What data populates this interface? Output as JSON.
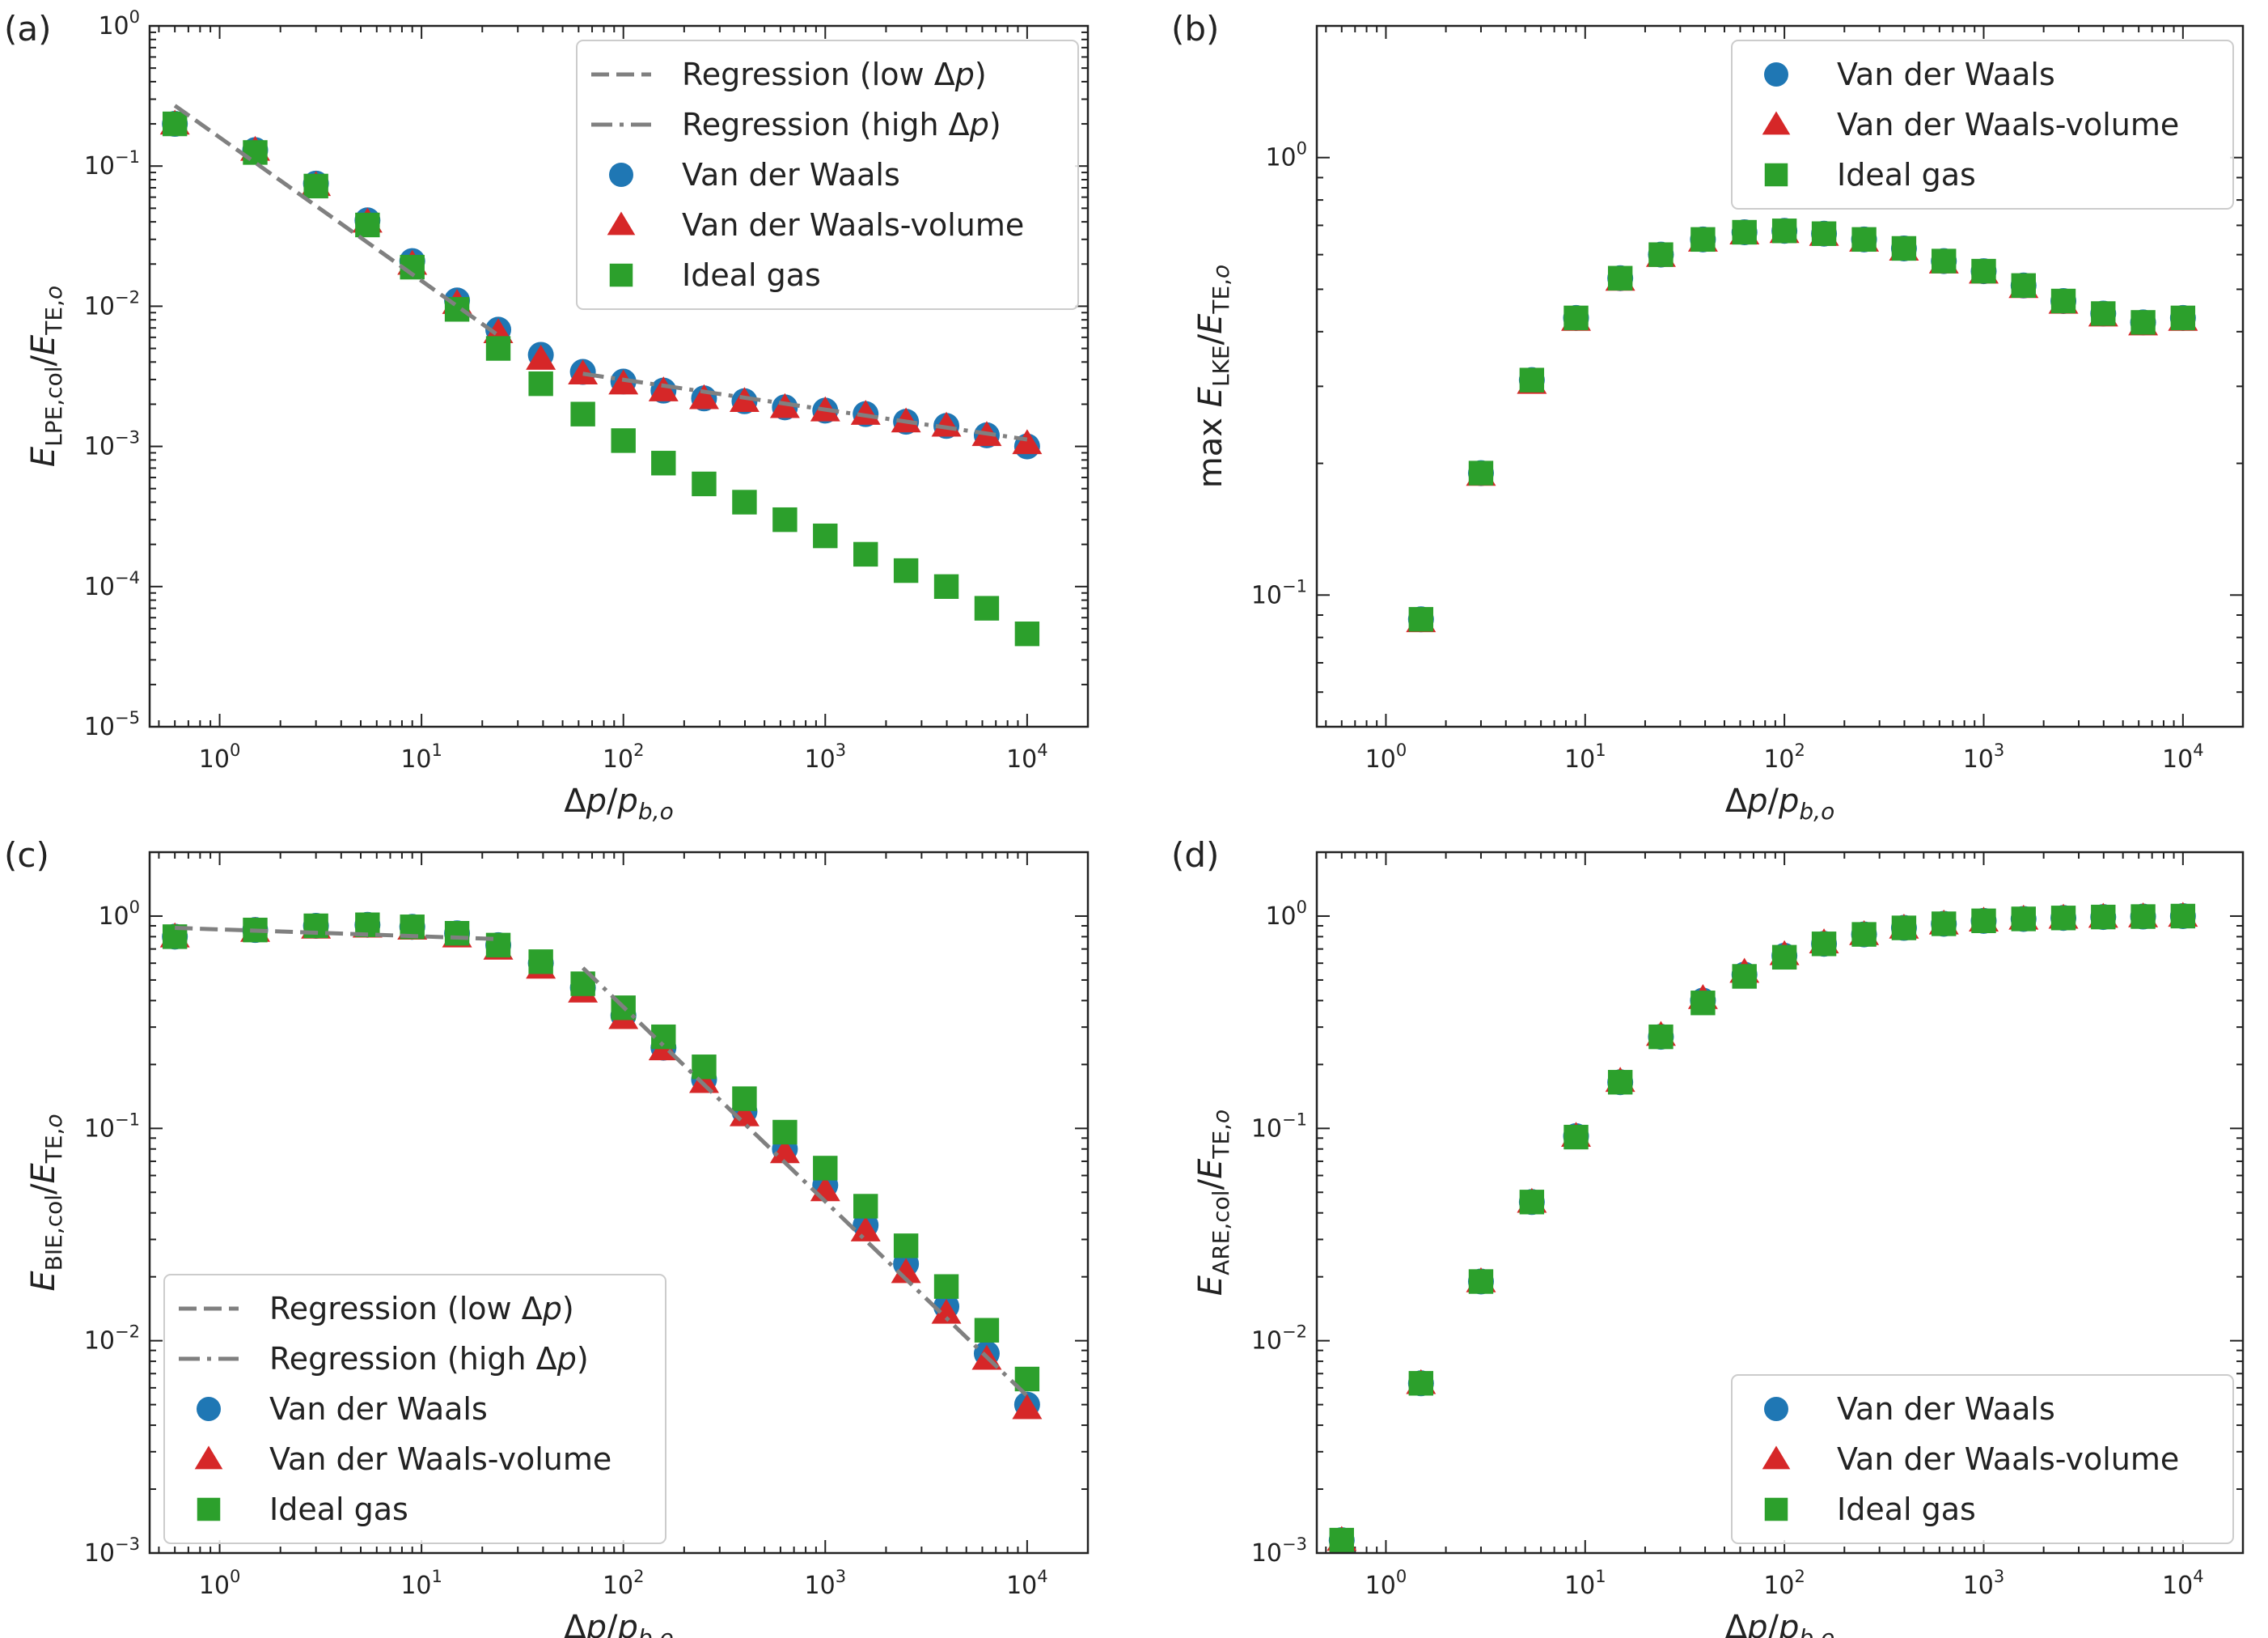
{
  "colors": {
    "vdw": "#1f77b4",
    "vdw_volume": "#d62728",
    "ideal": "#2ca02c",
    "regression": "#808080"
  },
  "chart_data": [
    {
      "type": "scatter",
      "panel_label": "(a)",
      "xlabel": "Δp/p_{b,o}",
      "ylabel": "E_LPE,col/E_TE,o",
      "xscale": "log",
      "yscale": "log",
      "xlim": [
        0.45,
        20000
      ],
      "ylim": [
        1e-05,
        1
      ],
      "xticks": [
        {
          "value": 1,
          "base": "10",
          "exp": "0"
        },
        {
          "value": 10,
          "base": "10",
          "exp": "1"
        },
        {
          "value": 100,
          "base": "10",
          "exp": "2"
        },
        {
          "value": 1000,
          "base": "10",
          "exp": "3"
        },
        {
          "value": 10000,
          "base": "10",
          "exp": "4"
        }
      ],
      "yticks": [
        {
          "value": 1,
          "base": "10",
          "exp": "0"
        },
        {
          "value": 0.1,
          "base": "10",
          "exp": "−1"
        },
        {
          "value": 0.01,
          "base": "10",
          "exp": "−2"
        },
        {
          "value": 0.001,
          "base": "10",
          "exp": "−3"
        },
        {
          "value": 0.0001,
          "base": "10",
          "exp": "−4"
        },
        {
          "value": 1e-05,
          "base": "10",
          "exp": "−5"
        }
      ],
      "x": [
        0.6,
        1.5,
        3,
        5.4,
        9,
        15,
        24,
        39,
        63,
        100,
        158,
        251,
        398,
        631,
        1000,
        1585,
        2512,
        3981,
        6310,
        10000
      ],
      "series": [
        {
          "name": "Van der Waals",
          "marker": "circle",
          "values": [
            0.2,
            0.13,
            0.075,
            0.041,
            0.021,
            0.011,
            0.0068,
            0.0045,
            0.0034,
            0.0029,
            0.0025,
            0.0022,
            0.0021,
            0.0019,
            0.0018,
            0.0017,
            0.0015,
            0.0014,
            0.0012,
            0.001
          ]
        },
        {
          "name": "Van der Waals-volume",
          "marker": "triangle",
          "values": [
            0.2,
            0.13,
            0.073,
            0.04,
            0.02,
            0.0105,
            0.0065,
            0.0042,
            0.0033,
            0.0028,
            0.0025,
            0.0022,
            0.0021,
            0.0019,
            0.0018,
            0.0017,
            0.0015,
            0.0014,
            0.0012,
            0.00105
          ]
        },
        {
          "name": "Ideal gas",
          "marker": "square",
          "values": [
            0.2,
            0.125,
            0.072,
            0.038,
            0.019,
            0.0095,
            0.005,
            0.0028,
            0.0017,
            0.0011,
            0.00076,
            0.00054,
            0.0004,
            0.0003,
            0.00023,
            0.00017,
            0.00013,
            0.0001,
            7e-05,
            4.6e-05
          ]
        }
      ],
      "regressions": [
        {
          "name": "Regression (low Δp)",
          "style": "dashed",
          "x": [
            0.6,
            24
          ],
          "y": [
            0.27,
            0.0062
          ]
        },
        {
          "name": "Regression (high Δp)",
          "style": "dashdot",
          "x": [
            63,
            10000
          ],
          "y": [
            0.0033,
            0.00112
          ]
        }
      ],
      "legend": {
        "position": "top-right",
        "entries": [
          {
            "kind": "dashed",
            "label": "Regression (low Δp)"
          },
          {
            "kind": "dashdot",
            "label": "Regression (high Δp)"
          },
          {
            "kind": "circle",
            "label": "Van der Waals"
          },
          {
            "kind": "triangle",
            "label": "Van der Waals-volume"
          },
          {
            "kind": "square",
            "label": "Ideal gas"
          }
        ]
      }
    },
    {
      "type": "scatter",
      "panel_label": "(b)",
      "xlabel": "Δp/p_{b,o}",
      "ylabel": "max E_LKE/E_TE,o",
      "xscale": "log",
      "yscale": "log",
      "xlim": [
        0.45,
        20000
      ],
      "ylim": [
        0.05,
        2.0
      ],
      "xticks": [
        {
          "value": 1,
          "base": "10",
          "exp": "0"
        },
        {
          "value": 10,
          "base": "10",
          "exp": "1"
        },
        {
          "value": 100,
          "base": "10",
          "exp": "2"
        },
        {
          "value": 1000,
          "base": "10",
          "exp": "3"
        },
        {
          "value": 10000,
          "base": "10",
          "exp": "4"
        }
      ],
      "yticks": [
        {
          "value": 1,
          "base": "10",
          "exp": "0"
        },
        {
          "value": 0.1,
          "base": "10",
          "exp": "−1"
        }
      ],
      "x": [
        1.5,
        3,
        5.4,
        9,
        15,
        24,
        39,
        63,
        100,
        158,
        251,
        398,
        631,
        1000,
        1585,
        2512,
        3981,
        6310,
        10000
      ],
      "series": [
        {
          "name": "Van der Waals",
          "marker": "circle",
          "values": [
            0.088,
            0.19,
            0.31,
            0.43,
            0.53,
            0.6,
            0.65,
            0.675,
            0.68,
            0.67,
            0.65,
            0.62,
            0.58,
            0.55,
            0.51,
            0.47,
            0.44,
            0.42,
            0.43
          ]
        },
        {
          "name": "Van der Waals-volume",
          "marker": "triangle",
          "values": [
            0.087,
            0.188,
            0.305,
            0.425,
            0.525,
            0.595,
            0.645,
            0.67,
            0.675,
            0.665,
            0.645,
            0.615,
            0.575,
            0.545,
            0.505,
            0.465,
            0.435,
            0.415,
            0.425
          ]
        },
        {
          "name": "Ideal gas",
          "marker": "square",
          "values": [
            0.088,
            0.19,
            0.31,
            0.43,
            0.53,
            0.6,
            0.65,
            0.675,
            0.68,
            0.67,
            0.65,
            0.62,
            0.58,
            0.55,
            0.51,
            0.47,
            0.44,
            0.42,
            0.43
          ]
        }
      ],
      "regressions": [],
      "legend": {
        "position": "top-right",
        "entries": [
          {
            "kind": "circle",
            "label": "Van der Waals"
          },
          {
            "kind": "triangle",
            "label": "Van der Waals-volume"
          },
          {
            "kind": "square",
            "label": "Ideal gas"
          }
        ]
      }
    },
    {
      "type": "scatter",
      "panel_label": "(c)",
      "xlabel": "Δp/p_{b,o}",
      "ylabel": "E_BIE,col/E_TE,o",
      "xscale": "log",
      "yscale": "log",
      "xlim": [
        0.45,
        20000
      ],
      "ylim": [
        0.001,
        2.0
      ],
      "xticks": [
        {
          "value": 1,
          "base": "10",
          "exp": "0"
        },
        {
          "value": 10,
          "base": "10",
          "exp": "1"
        },
        {
          "value": 100,
          "base": "10",
          "exp": "2"
        },
        {
          "value": 1000,
          "base": "10",
          "exp": "3"
        },
        {
          "value": 10000,
          "base": "10",
          "exp": "4"
        }
      ],
      "yticks": [
        {
          "value": 1,
          "base": "10",
          "exp": "0"
        },
        {
          "value": 0.1,
          "base": "10",
          "exp": "−1"
        },
        {
          "value": 0.01,
          "base": "10",
          "exp": "−2"
        },
        {
          "value": 0.001,
          "base": "10",
          "exp": "−3"
        }
      ],
      "x": [
        0.6,
        1.5,
        3,
        5.4,
        9,
        15,
        24,
        39,
        63,
        100,
        158,
        251,
        398,
        631,
        1000,
        1585,
        2512,
        3981,
        6310,
        10000
      ],
      "series": [
        {
          "name": "Van der Waals",
          "marker": "circle",
          "values": [
            0.8,
            0.86,
            0.9,
            0.91,
            0.89,
            0.83,
            0.73,
            0.6,
            0.46,
            0.34,
            0.24,
            0.17,
            0.12,
            0.08,
            0.054,
            0.035,
            0.023,
            0.0145,
            0.0087,
            0.005
          ]
        },
        {
          "name": "Van der Waals-volume",
          "marker": "triangle",
          "values": [
            0.8,
            0.85,
            0.88,
            0.89,
            0.87,
            0.8,
            0.7,
            0.57,
            0.44,
            0.33,
            0.235,
            0.165,
            0.115,
            0.077,
            0.051,
            0.033,
            0.021,
            0.0135,
            0.0082,
            0.0048
          ]
        },
        {
          "name": "Ideal gas",
          "marker": "square",
          "values": [
            0.8,
            0.86,
            0.9,
            0.91,
            0.89,
            0.83,
            0.73,
            0.61,
            0.48,
            0.37,
            0.27,
            0.195,
            0.138,
            0.096,
            0.065,
            0.043,
            0.028,
            0.018,
            0.0112,
            0.0066
          ]
        }
      ],
      "regressions": [
        {
          "name": "Regression (low Δp)",
          "style": "dashed",
          "x": [
            0.6,
            24
          ],
          "y": [
            0.88,
            0.78
          ]
        },
        {
          "name": "Regression (high Δp)",
          "style": "dashdot",
          "x": [
            63,
            10000
          ],
          "y": [
            0.57,
            0.0055
          ]
        }
      ],
      "legend": {
        "position": "bottom-left",
        "entries": [
          {
            "kind": "dashed",
            "label": "Regression (low Δp)"
          },
          {
            "kind": "dashdot",
            "label": "Regression (high Δp)"
          },
          {
            "kind": "circle",
            "label": "Van der Waals"
          },
          {
            "kind": "triangle",
            "label": "Van der Waals-volume"
          },
          {
            "kind": "square",
            "label": "Ideal gas"
          }
        ]
      }
    },
    {
      "type": "scatter",
      "panel_label": "(d)",
      "xlabel": "Δp/p_{b,o}",
      "ylabel": "E_ARE,col/E_TE,o",
      "xscale": "log",
      "yscale": "log",
      "xlim": [
        0.45,
        20000
      ],
      "ylim": [
        0.001,
        2.0
      ],
      "xticks": [
        {
          "value": 1,
          "base": "10",
          "exp": "0"
        },
        {
          "value": 10,
          "base": "10",
          "exp": "1"
        },
        {
          "value": 100,
          "base": "10",
          "exp": "2"
        },
        {
          "value": 1000,
          "base": "10",
          "exp": "3"
        },
        {
          "value": 10000,
          "base": "10",
          "exp": "4"
        }
      ],
      "yticks": [
        {
          "value": 1,
          "base": "10",
          "exp": "0"
        },
        {
          "value": 0.1,
          "base": "10",
          "exp": "−1"
        },
        {
          "value": 0.01,
          "base": "10",
          "exp": "−2"
        },
        {
          "value": 0.001,
          "base": "10",
          "exp": "−3"
        }
      ],
      "x": [
        0.6,
        1.5,
        3,
        5.4,
        9,
        15,
        24,
        39,
        63,
        100,
        158,
        251,
        398,
        631,
        1000,
        1585,
        2512,
        3981,
        6310,
        10000
      ],
      "series": [
        {
          "name": "Van der Waals",
          "marker": "circle",
          "values": [
            0.00115,
            0.0063,
            0.019,
            0.045,
            0.092,
            0.165,
            0.27,
            0.4,
            0.53,
            0.65,
            0.74,
            0.82,
            0.88,
            0.92,
            0.95,
            0.97,
            0.98,
            0.99,
            0.995,
            1.0
          ]
        },
        {
          "name": "Van der Waals-volume",
          "marker": "triangle",
          "values": [
            0.00115,
            0.0063,
            0.019,
            0.045,
            0.092,
            0.167,
            0.275,
            0.41,
            0.545,
            0.66,
            0.75,
            0.82,
            0.88,
            0.92,
            0.95,
            0.97,
            0.98,
            0.99,
            0.995,
            1.0
          ]
        },
        {
          "name": "Ideal gas",
          "marker": "square",
          "values": [
            0.00115,
            0.0063,
            0.019,
            0.045,
            0.091,
            0.165,
            0.27,
            0.39,
            0.52,
            0.64,
            0.74,
            0.82,
            0.88,
            0.92,
            0.95,
            0.97,
            0.98,
            0.99,
            0.995,
            1.0
          ]
        }
      ],
      "regressions": [],
      "legend": {
        "position": "bottom-right",
        "entries": [
          {
            "kind": "circle",
            "label": "Van der Waals"
          },
          {
            "kind": "triangle",
            "label": "Van der Waals-volume"
          },
          {
            "kind": "square",
            "label": "Ideal gas"
          }
        ]
      }
    }
  ]
}
